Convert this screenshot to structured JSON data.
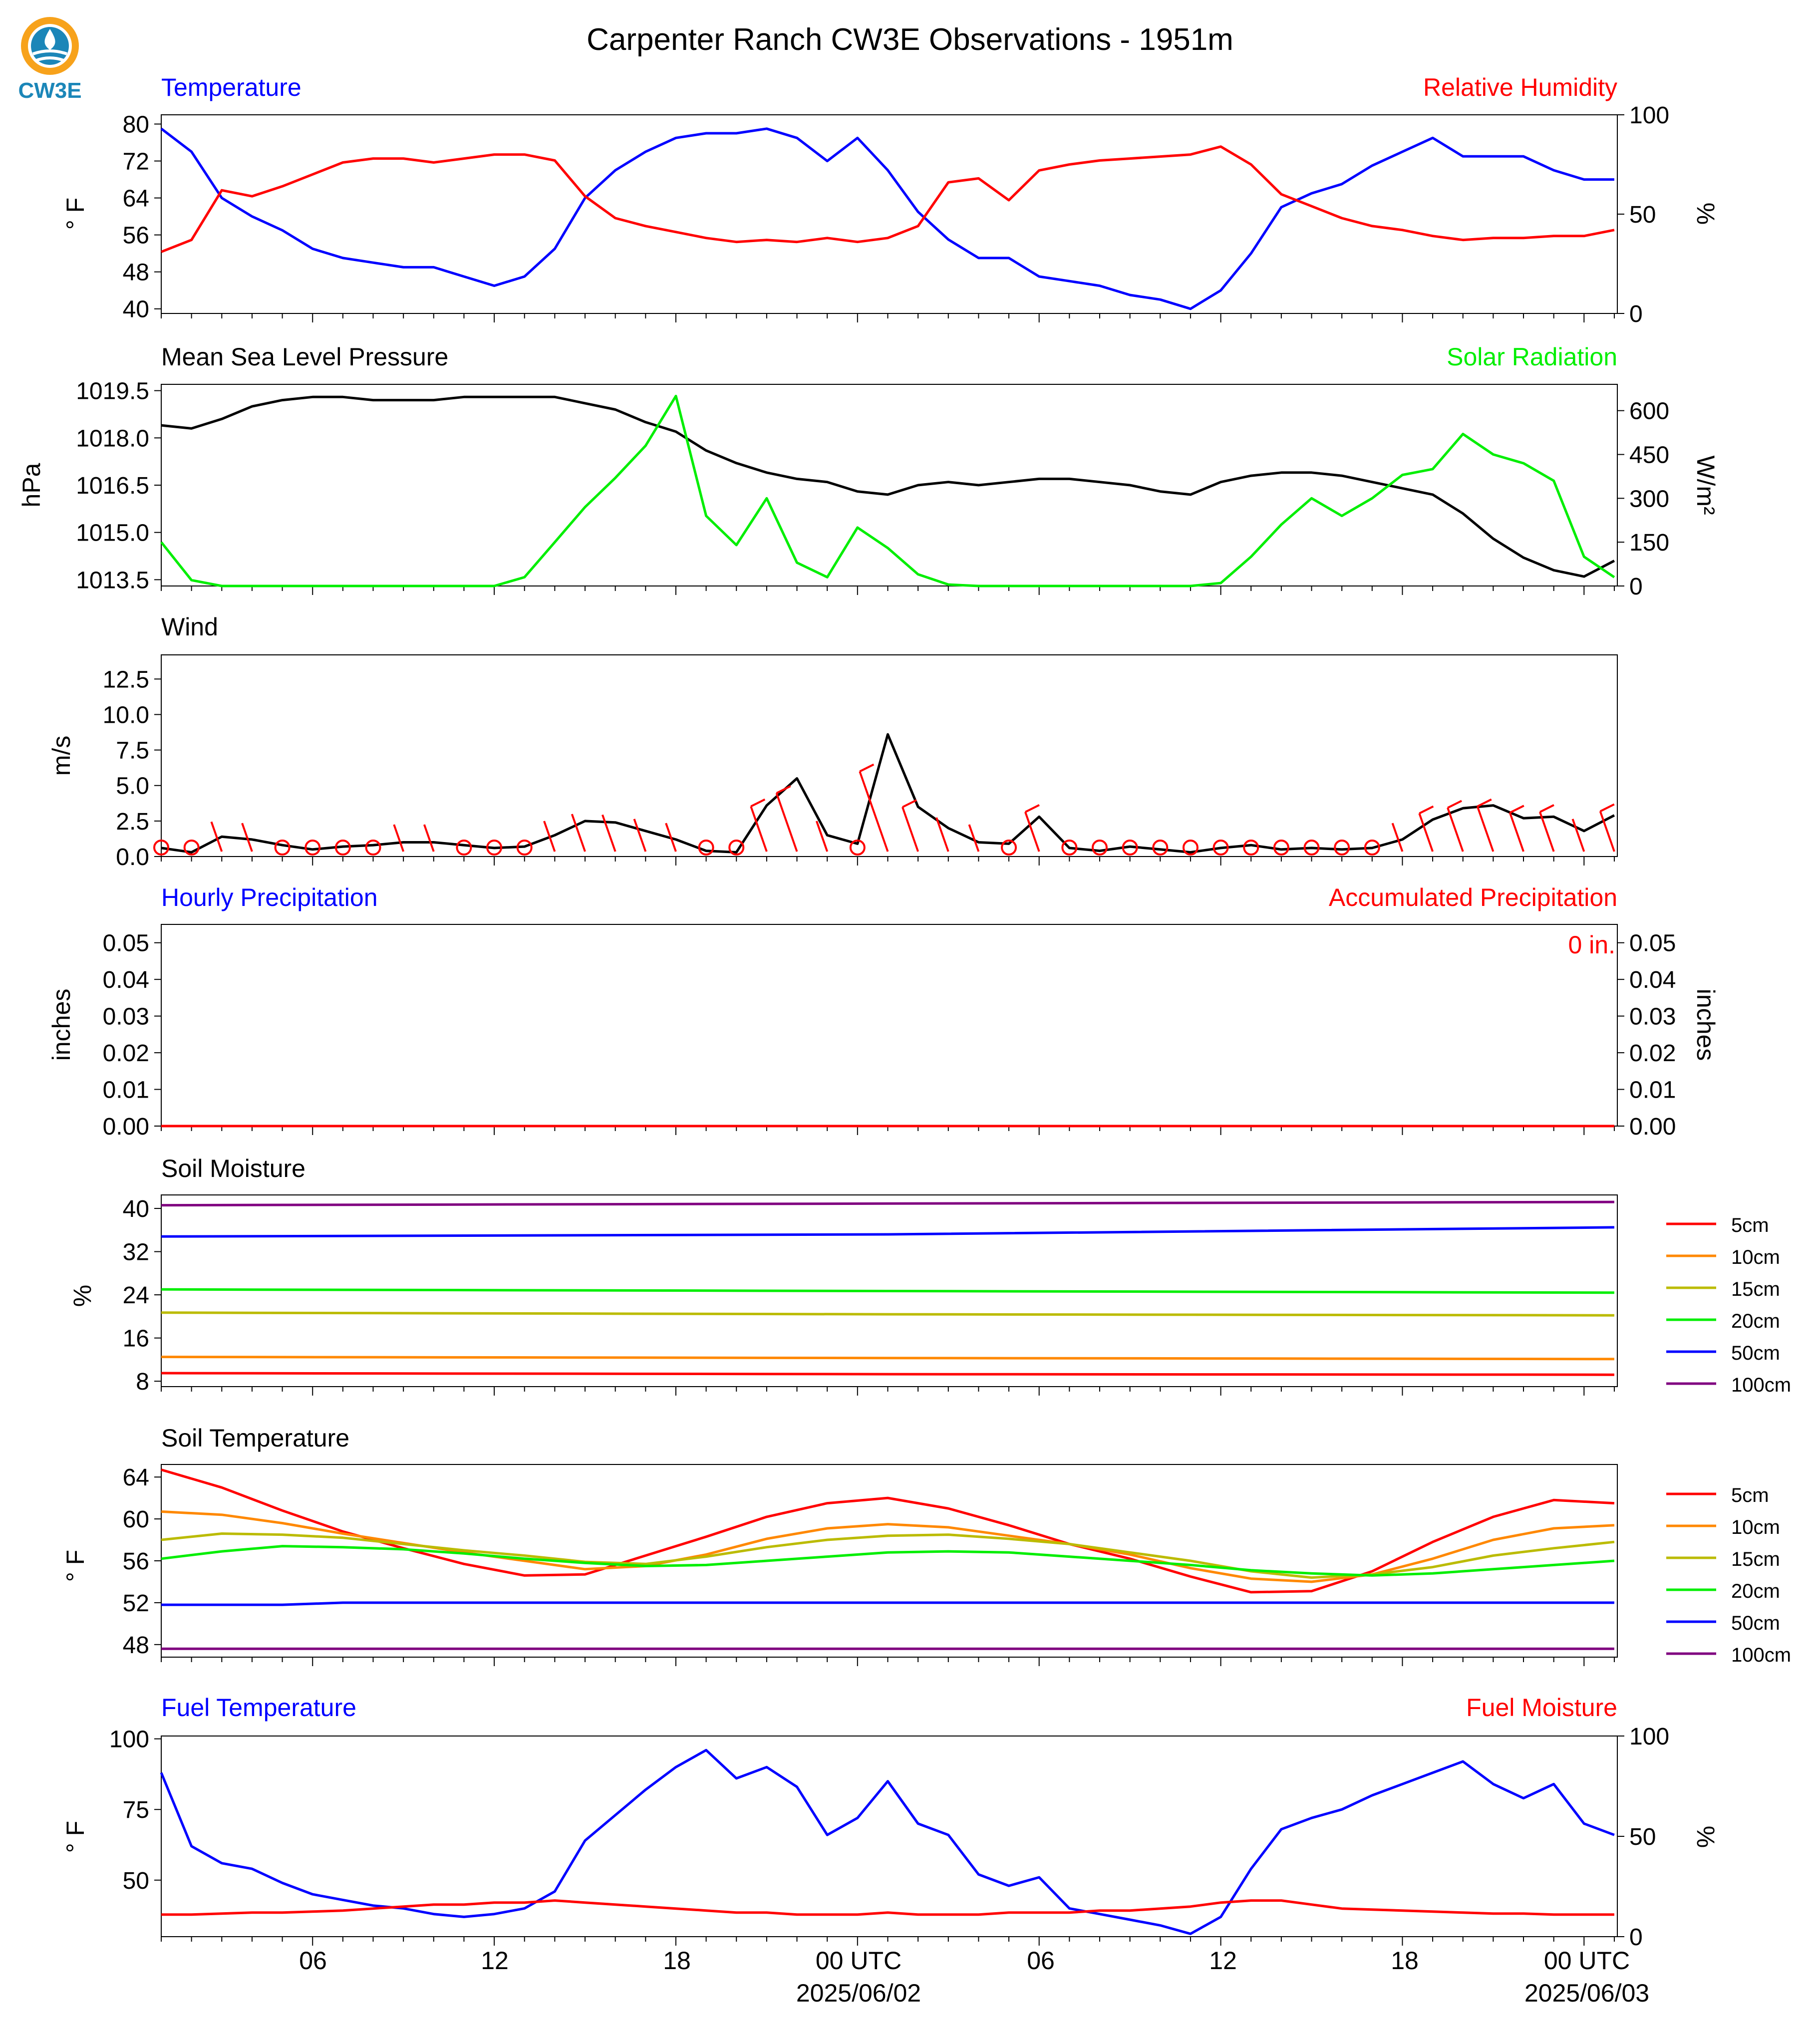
{
  "figure": {
    "title": "Carpenter Ranch CW3E Observations - 1951m",
    "logo_text": "CW3E",
    "x_axis": {
      "ticks": [
        "06",
        "12",
        "18",
        "00 UTC",
        "06",
        "12",
        "18",
        "00 UTC"
      ],
      "dates": [
        "2025/06/02",
        "2025/06/03"
      ]
    }
  },
  "chart_data": [
    {
      "id": "temp_rh",
      "type": "line",
      "title_left": "Temperature",
      "title_right": "Relative Humidity",
      "ylabel_left": "° F",
      "ylabel_right": "%",
      "ylim_left": [
        39,
        82
      ],
      "ylim_right": [
        0,
        100
      ],
      "yticks_left": [
        "40",
        "48",
        "56",
        "64",
        "72",
        "80"
      ],
      "yticks_right": [
        "0",
        "50",
        "100"
      ],
      "x_hours": [
        1,
        2,
        3,
        4,
        5,
        6,
        7,
        8,
        9,
        10,
        11,
        12,
        13,
        14,
        15,
        16,
        17,
        18,
        19,
        20,
        21,
        22,
        23,
        24,
        25,
        26,
        27,
        28,
        29,
        30,
        31,
        32,
        33,
        34,
        35,
        36,
        37,
        38,
        39,
        40,
        41,
        42,
        43,
        44,
        45,
        46,
        47,
        48,
        49
      ],
      "series": [
        {
          "name": "Temperature",
          "axis": "left",
          "color": "#0000ff",
          "values": [
            79,
            74,
            64,
            60,
            57,
            53,
            51,
            50,
            49,
            49,
            47,
            45,
            47,
            53,
            64,
            70,
            74,
            77,
            78,
            78,
            79,
            77,
            72,
            77,
            70,
            61,
            55,
            51,
            51,
            47,
            46,
            45,
            43,
            42,
            40,
            44,
            52,
            62,
            65,
            67,
            71,
            74,
            77,
            73,
            73,
            73,
            70,
            68,
            68
          ]
        },
        {
          "name": "Relative Humidity",
          "axis": "right",
          "color": "#ff0000",
          "values": [
            31,
            37,
            62,
            59,
            64,
            70,
            76,
            78,
            78,
            76,
            78,
            80,
            80,
            77,
            59,
            48,
            44,
            41,
            38,
            36,
            37,
            36,
            38,
            36,
            38,
            44,
            66,
            68,
            57,
            72,
            75,
            77,
            78,
            79,
            80,
            84,
            75,
            60,
            54,
            48,
            44,
            42,
            39,
            37,
            38,
            38,
            39,
            39,
            42
          ]
        }
      ]
    },
    {
      "id": "mslp_solar",
      "type": "line",
      "title_left": "Mean Sea Level Pressure",
      "title_right": "Solar Radiation",
      "ylabel_left": "hPa",
      "ylabel_right": "W/m²",
      "ylim_left": [
        1013.3,
        1019.7
      ],
      "ylim_right": [
        0,
        690
      ],
      "yticks_left": [
        "1013.5",
        "1015.0",
        "1016.5",
        "1018.0",
        "1019.5"
      ],
      "yticks_right": [
        "0",
        "150",
        "300",
        "450",
        "600"
      ],
      "x_hours": [
        1,
        2,
        3,
        4,
        5,
        6,
        7,
        8,
        9,
        10,
        11,
        12,
        13,
        14,
        15,
        16,
        17,
        18,
        19,
        20,
        21,
        22,
        23,
        24,
        25,
        26,
        27,
        28,
        29,
        30,
        31,
        32,
        33,
        34,
        35,
        36,
        37,
        38,
        39,
        40,
        41,
        42,
        43,
        44,
        45,
        46,
        47,
        48,
        49
      ],
      "series": [
        {
          "name": "Mean Sea Level Pressure",
          "axis": "left",
          "color": "#000000",
          "values": [
            1018.4,
            1018.3,
            1018.6,
            1019.0,
            1019.2,
            1019.3,
            1019.3,
            1019.2,
            1019.2,
            1019.2,
            1019.3,
            1019.3,
            1019.3,
            1019.3,
            1019.1,
            1018.9,
            1018.5,
            1018.2,
            1017.6,
            1017.2,
            1016.9,
            1016.7,
            1016.6,
            1016.3,
            1016.2,
            1016.5,
            1016.6,
            1016.5,
            1016.6,
            1016.7,
            1016.7,
            1016.6,
            1016.5,
            1016.3,
            1016.2,
            1016.6,
            1016.8,
            1016.9,
            1016.9,
            1016.8,
            1016.6,
            1016.4,
            1016.2,
            1015.6,
            1014.8,
            1014.2,
            1013.8,
            1013.6,
            1014.1
          ]
        },
        {
          "name": "Solar Radiation",
          "axis": "right",
          "color": "#00ee00",
          "values": [
            150,
            20,
            0,
            0,
            0,
            0,
            0,
            0,
            0,
            0,
            0,
            0,
            30,
            150,
            270,
            370,
            480,
            650,
            240,
            140,
            300,
            80,
            30,
            200,
            130,
            40,
            5,
            0,
            0,
            0,
            0,
            0,
            0,
            0,
            0,
            10,
            100,
            210,
            300,
            240,
            300,
            380,
            400,
            520,
            450,
            420,
            360,
            100,
            30
          ]
        }
      ]
    },
    {
      "id": "wind",
      "type": "line",
      "title_left": "Wind",
      "ylabel_left": "m/s",
      "ylim_left": [
        0,
        14.2
      ],
      "yticks_left": [
        "0.0",
        "2.5",
        "5.0",
        "7.5",
        "10.0",
        "12.5"
      ],
      "x_hours": [
        1,
        2,
        3,
        4,
        5,
        6,
        7,
        8,
        9,
        10,
        11,
        12,
        13,
        14,
        15,
        16,
        17,
        18,
        19,
        20,
        21,
        22,
        23,
        24,
        25,
        26,
        27,
        28,
        29,
        30,
        31,
        32,
        33,
        34,
        35,
        36,
        37,
        38,
        39,
        40,
        41,
        42,
        43,
        44,
        45,
        46,
        47,
        48,
        49
      ],
      "series": [
        {
          "name": "Wind Speed",
          "axis": "left",
          "color": "#000000",
          "values": [
            0.6,
            0.3,
            1.4,
            1.2,
            0.8,
            0.5,
            0.7,
            0.8,
            1.0,
            1.0,
            0.8,
            0.6,
            0.7,
            1.5,
            2.5,
            2.4,
            1.8,
            1.2,
            0.4,
            0.3,
            3.6,
            5.5,
            1.5,
            0.9,
            8.6,
            3.5,
            2.0,
            1.0,
            0.9,
            2.8,
            0.6,
            0.4,
            0.7,
            0.5,
            0.3,
            0.6,
            0.8,
            0.5,
            0.6,
            0.5,
            0.6,
            1.2,
            2.6,
            3.4,
            3.6,
            2.7,
            2.8,
            1.8,
            2.9
          ]
        }
      ],
      "barb_color": "#ff0000"
    },
    {
      "id": "precip",
      "type": "line",
      "title_left": "Hourly Precipitation",
      "title_right": "Accumulated Precipitation",
      "ylabel_left": "inches",
      "ylabel_right": "inches",
      "ylim_left": [
        0,
        0.055
      ],
      "ylim_right": [
        0,
        0.055
      ],
      "yticks_left": [
        "0.00",
        "0.01",
        "0.02",
        "0.03",
        "0.04",
        "0.05"
      ],
      "yticks_right": [
        "0.00",
        "0.01",
        "0.02",
        "0.03",
        "0.04",
        "0.05"
      ],
      "annotation": "0 in.",
      "x_hours": [
        1,
        49
      ],
      "series": [
        {
          "name": "Accumulated Precipitation",
          "axis": "left",
          "color": "#ff0000",
          "values": [
            0,
            0
          ]
        }
      ]
    },
    {
      "id": "soil_moisture",
      "type": "line",
      "title_left": "Soil Moisture",
      "ylabel_left": "%",
      "ylim_left": [
        7,
        42.5
      ],
      "yticks_left": [
        "8",
        "16",
        "24",
        "32",
        "40"
      ],
      "x_hours": [
        1,
        25,
        49
      ],
      "series": [
        {
          "name": "5cm",
          "color": "#ff0000",
          "values": [
            9.5,
            9.3,
            9.2
          ]
        },
        {
          "name": "10cm",
          "color": "#ff8800",
          "values": [
            12.5,
            12.3,
            12.1
          ]
        },
        {
          "name": "15cm",
          "color": "#bbbb00",
          "values": [
            20.7,
            20.4,
            20.2
          ]
        },
        {
          "name": "20cm",
          "color": "#00ee00",
          "values": [
            25.0,
            24.7,
            24.4
          ]
        },
        {
          "name": "50cm",
          "color": "#0000ff",
          "values": [
            34.8,
            35.2,
            36.5
          ]
        },
        {
          "name": "100cm",
          "color": "#800080",
          "values": [
            40.6,
            40.9,
            41.2
          ]
        }
      ]
    },
    {
      "id": "soil_temp",
      "type": "line",
      "title_left": "Soil Temperature",
      "ylabel_left": "° F",
      "ylim_left": [
        46.8,
        65.2
      ],
      "yticks_left": [
        "48",
        "52",
        "56",
        "60",
        "64"
      ],
      "x_hours": [
        1,
        3,
        5,
        7,
        9,
        11,
        13,
        15,
        17,
        19,
        21,
        23,
        25,
        27,
        29,
        31,
        33,
        35,
        37,
        39,
        41,
        43,
        45,
        47,
        49
      ],
      "series": [
        {
          "name": "5cm",
          "color": "#ff0000",
          "values": [
            64.7,
            63.0,
            60.8,
            58.8,
            57.2,
            55.7,
            54.6,
            54.7,
            56.5,
            58.3,
            60.2,
            61.5,
            62.0,
            61.0,
            59.4,
            57.6,
            56.2,
            54.5,
            53.0,
            53.1,
            55.0,
            57.8,
            60.2,
            61.8,
            61.5
          ]
        },
        {
          "name": "10cm",
          "color": "#ff8800",
          "values": [
            60.7,
            60.4,
            59.6,
            58.6,
            57.7,
            56.8,
            56.0,
            55.2,
            55.5,
            56.6,
            58.1,
            59.1,
            59.5,
            59.2,
            58.4,
            57.6,
            56.6,
            55.3,
            54.3,
            54.0,
            54.7,
            56.2,
            58.0,
            59.1,
            59.4
          ]
        },
        {
          "name": "15cm",
          "color": "#bbbb00",
          "values": [
            58.0,
            58.6,
            58.5,
            58.2,
            57.6,
            57.0,
            56.5,
            55.9,
            55.7,
            56.4,
            57.3,
            58.0,
            58.4,
            58.5,
            58.1,
            57.6,
            56.8,
            56.0,
            55.0,
            54.4,
            54.7,
            55.4,
            56.5,
            57.2,
            57.8
          ]
        },
        {
          "name": "20cm",
          "color": "#00ee00",
          "values": [
            56.2,
            56.9,
            57.4,
            57.3,
            57.1,
            56.7,
            56.2,
            55.8,
            55.5,
            55.6,
            56.0,
            56.4,
            56.8,
            56.9,
            56.8,
            56.4,
            56.0,
            55.6,
            55.1,
            54.8,
            54.6,
            54.8,
            55.2,
            55.6,
            56.0
          ]
        },
        {
          "name": "50cm",
          "color": "#0000ff",
          "values": [
            51.8,
            51.8,
            51.8,
            52.0,
            52.0,
            52.0,
            52.0,
            52.0,
            52.0,
            52.0,
            52.0,
            52.0,
            52.0,
            52.0,
            52.0,
            52.0,
            52.0,
            52.0,
            52.0,
            52.0,
            52.0,
            52.0,
            52.0,
            52.0,
            52.0
          ]
        },
        {
          "name": "100cm",
          "color": "#800080",
          "values": [
            47.6,
            47.6,
            47.6,
            47.6,
            47.6,
            47.6,
            47.6,
            47.6,
            47.6,
            47.6,
            47.6,
            47.6,
            47.6,
            47.6,
            47.6,
            47.6,
            47.6,
            47.6,
            47.6,
            47.6,
            47.6,
            47.6,
            47.6,
            47.6,
            47.6
          ]
        }
      ]
    },
    {
      "id": "fuel",
      "type": "line",
      "title_left": "Fuel Temperature",
      "title_right": "Fuel Moisture",
      "ylabel_left": "° F",
      "ylabel_right": "%",
      "ylim_left": [
        30,
        101
      ],
      "ylim_right": [
        0,
        100
      ],
      "yticks_left": [
        "50",
        "75",
        "100"
      ],
      "yticks_right": [
        "0",
        "50",
        "100"
      ],
      "x_hours": [
        1,
        2,
        3,
        4,
        5,
        6,
        7,
        8,
        9,
        10,
        11,
        12,
        13,
        14,
        15,
        16,
        17,
        18,
        19,
        20,
        21,
        22,
        23,
        24,
        25,
        26,
        27,
        28,
        29,
        30,
        31,
        32,
        33,
        34,
        35,
        36,
        37,
        38,
        39,
        40,
        41,
        42,
        43,
        44,
        45,
        46,
        47,
        48,
        49
      ],
      "series": [
        {
          "name": "Fuel Temperature",
          "axis": "left",
          "color": "#0000ff",
          "values": [
            88,
            62,
            56,
            54,
            49,
            45,
            43,
            41,
            40,
            38,
            37,
            38,
            40,
            46,
            64,
            73,
            82,
            90,
            96,
            86,
            90,
            83,
            66,
            72,
            85,
            70,
            66,
            52,
            48,
            51,
            40,
            38,
            36,
            34,
            31,
            37,
            54,
            68,
            72,
            75,
            80,
            84,
            88,
            92,
            84,
            79,
            84,
            70,
            66
          ]
        },
        {
          "name": "Fuel Moisture",
          "axis": "right",
          "color": "#ff0000",
          "values": [
            11,
            11,
            11.5,
            12,
            12,
            12.5,
            13,
            14,
            15,
            16,
            16,
            17,
            17,
            18,
            17,
            16,
            15,
            14,
            13,
            12,
            12,
            11,
            11,
            11,
            12,
            11,
            11,
            11,
            12,
            12,
            12,
            13,
            13,
            14,
            15,
            17,
            18,
            18,
            16,
            14,
            13.5,
            13,
            12.5,
            12,
            11.5,
            11.5,
            11,
            11,
            11
          ]
        }
      ]
    }
  ],
  "legend": {
    "soil": [
      "5cm",
      "10cm",
      "15cm",
      "20cm",
      "50cm",
      "100cm"
    ],
    "colors": [
      "#ff0000",
      "#ff8800",
      "#bbbb00",
      "#00ee00",
      "#0000ff",
      "#800080"
    ]
  }
}
